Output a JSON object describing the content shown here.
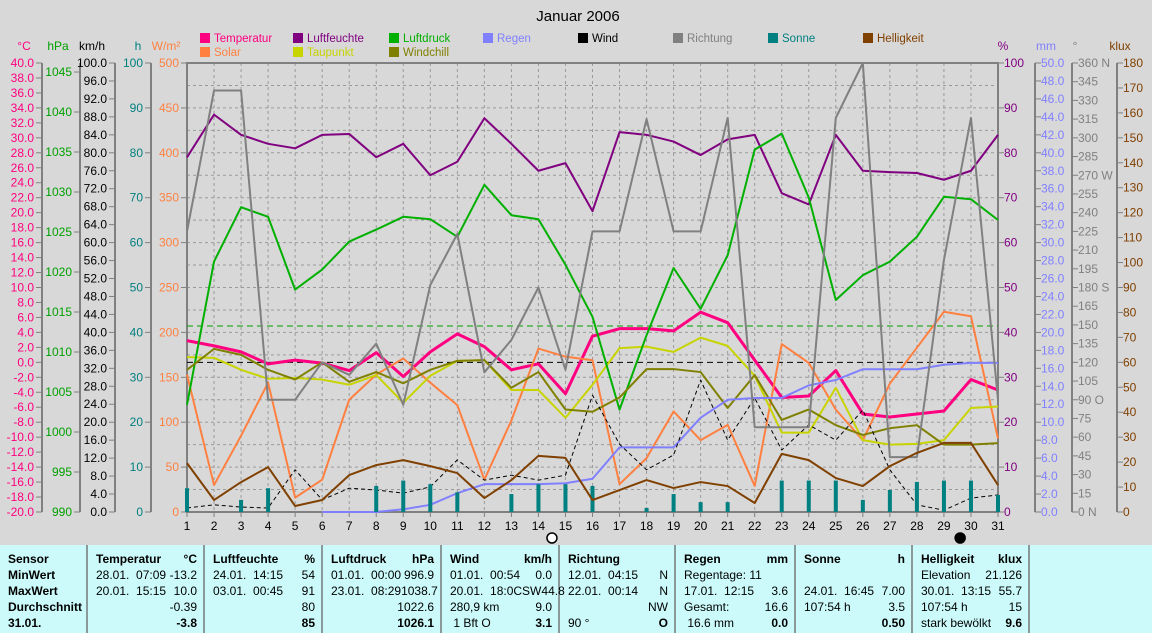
{
  "chart_data": {
    "type": "line",
    "title": "Januar 2006",
    "x": [
      1,
      2,
      3,
      4,
      5,
      6,
      7,
      8,
      9,
      10,
      11,
      12,
      13,
      14,
      15,
      16,
      17,
      18,
      19,
      20,
      21,
      22,
      23,
      24,
      25,
      26,
      27,
      28,
      29,
      30,
      31
    ],
    "xlim": [
      1,
      31
    ],
    "grid": true,
    "axes": {
      "temp": {
        "unit": "°C",
        "min": -20,
        "max": 40,
        "step": 2,
        "dec": 1,
        "color": "#ff0080",
        "side": "left"
      },
      "hpa": {
        "unit": "hPa",
        "min": 990,
        "max": 1046.125,
        "step": 5,
        "dec": 0,
        "color": "#00a000",
        "side": "left",
        "label_max": 1045
      },
      "kmh": {
        "unit": "km/h",
        "min": 0,
        "max": 100,
        "step": 4,
        "dec": 1,
        "color": "#000000",
        "side": "left"
      },
      "h": {
        "unit": "h",
        "min": 0,
        "max": 100,
        "step": 10,
        "dec": 0,
        "color": "#008080",
        "side": "left"
      },
      "wm2": {
        "unit": "W/m²",
        "min": 0,
        "max": 500,
        "step": 50,
        "dec": 0,
        "color": "#ff8040",
        "side": "left"
      },
      "pct": {
        "unit": "%",
        "min": 0,
        "max": 100,
        "step": 10,
        "dec": 0,
        "color": "#800080",
        "side": "right"
      },
      "mm": {
        "unit": "mm",
        "min": 0,
        "max": 50,
        "step": 2,
        "dec": 1,
        "color": "#8080ff",
        "side": "right"
      },
      "deg": {
        "unit": "°",
        "min": 0,
        "max": 360,
        "step": 15,
        "dec": 0,
        "color": "#808080",
        "side": "right",
        "suffix": {
          "360": " N",
          "270": " W",
          "180": " S",
          "90": " O",
          "0": " N"
        }
      },
      "klux": {
        "unit": "klux",
        "min": 0,
        "max": 180,
        "step": 10,
        "dec": 0,
        "color": "#804000",
        "side": "right"
      }
    },
    "reference_lines": [
      {
        "axis": "hpa",
        "value": 1013.25,
        "color": "#00a000"
      },
      {
        "axis": "temp",
        "value": 0,
        "color": "#000000"
      }
    ],
    "series": [
      {
        "name": "Temperatur",
        "axis": "temp",
        "color": "#ff0080",
        "width": 3,
        "values": [
          2.9,
          2.2,
          1.4,
          -0.2,
          0.3,
          -0.1,
          -1.1,
          1.3,
          -1.9,
          1.4,
          3.8,
          2.1,
          -1.0,
          -0.2,
          -4.2,
          3.5,
          4.5,
          4.5,
          4.2,
          6.7,
          5.3,
          0.3,
          -4.7,
          -4.5,
          -1.1,
          -6.9,
          -7.3,
          -6.9,
          -6.5,
          -2.3,
          -3.7
        ]
      },
      {
        "name": "Solar",
        "axis": "wm2",
        "color": "#ff8040",
        "width": 2,
        "values": [
          153,
          30,
          85,
          144,
          16,
          36,
          125,
          153,
          171,
          144,
          119,
          36,
          102,
          182,
          173,
          169,
          31,
          60,
          112,
          80,
          97,
          29,
          187,
          166,
          114,
          80,
          143,
          183,
          223,
          218,
          82
        ]
      },
      {
        "name": "Luftfeuchte",
        "axis": "pct",
        "color": "#800080",
        "width": 2,
        "values": [
          79,
          88.5,
          84,
          82,
          81,
          84,
          84.2,
          79,
          82,
          75,
          78,
          87.7,
          82,
          76,
          77.7,
          67,
          84.6,
          84,
          82.5,
          79.5,
          83,
          84,
          71,
          68.5,
          84,
          76,
          75.7,
          75.5,
          74,
          76,
          84
        ]
      },
      {
        "name": "Taupunkt",
        "axis": "temp",
        "color": "#c8d400",
        "width": 2,
        "values": [
          0.7,
          0.6,
          -1.0,
          -2.2,
          -2.1,
          -2.3,
          -3.0,
          -1.7,
          -5.4,
          -1.8,
          0.2,
          0.3,
          -3.7,
          -3.7,
          -7.4,
          -3.0,
          1.9,
          2.1,
          1.4,
          3.3,
          2.2,
          -1.8,
          -9.4,
          -9.4,
          -3.4,
          -10.4,
          -11.0,
          -10.9,
          -10.4,
          -6.1,
          -5.9
        ]
      },
      {
        "name": "Luftdruck",
        "axis": "hpa",
        "color": "#00b000",
        "width": 2,
        "values": [
          1003.4,
          1021.3,
          1028.1,
          1026.9,
          1017.8,
          1020.3,
          1023.8,
          1025.3,
          1026.9,
          1026.6,
          1024.4,
          1030.9,
          1027.1,
          1026.6,
          1020.9,
          1014.4,
          1002.8,
          1012.1,
          1020.5,
          1015.4,
          1022.1,
          1035.3,
          1037.3,
          1029.3,
          1016.5,
          1019.6,
          1021.3,
          1024.4,
          1029.4,
          1029.1,
          1026.5
        ]
      },
      {
        "name": "Windchill",
        "axis": "temp",
        "color": "#808000",
        "width": 2,
        "values": [
          -1.0,
          1.8,
          1.0,
          -1.0,
          -2.3,
          0,
          -2.6,
          -1.3,
          -2.8,
          -1.0,
          0.2,
          0.3,
          -3.4,
          -1.3,
          -6.3,
          -6.6,
          -4.7,
          -0.9,
          -0.9,
          -1.3,
          -6.1,
          -1.7,
          -7.7,
          -6.3,
          -8.4,
          -9.7,
          -8.8,
          -8.4,
          -11.0,
          -11.0,
          -10.8
        ]
      },
      {
        "name": "Regen",
        "axis": "mm",
        "color": "#8080ff",
        "width": 2,
        "start_day": 6,
        "values": [
          0,
          0,
          0,
          0,
          0,
          0,
          0,
          0,
          0.3,
          0.8,
          2.1,
          3.1,
          3.1,
          3.1,
          3.2,
          3.7,
          7.2,
          7.2,
          7.2,
          10.5,
          12.5,
          12.7,
          12.7,
          14.1,
          14.7,
          15.9,
          15.9,
          15.9,
          16.4,
          16.6,
          16.6
        ]
      },
      {
        "name": "Wind",
        "axis": "kmh",
        "color": "#000000",
        "width": 1,
        "dash": true,
        "values": [
          0.9,
          1.6,
          1.1,
          0.9,
          9.4,
          2.7,
          5.3,
          4.9,
          4.2,
          5.6,
          11.6,
          7.1,
          8.2,
          7.1,
          8.2,
          26.0,
          15.1,
          9.4,
          12.7,
          29.4,
          16.0,
          25.4,
          13.8,
          19.4,
          16.0,
          22.7,
          9.4,
          1.6,
          0.4,
          3.1,
          3.8
        ]
      },
      {
        "name": "Richtung",
        "axis": "deg",
        "color": "#808080",
        "width": 2,
        "values": [
          225,
          338,
          338,
          90,
          90,
          120,
          110,
          135,
          86,
          182,
          223,
          112,
          138,
          180,
          114,
          225,
          225,
          315,
          225,
          225,
          316,
          68,
          68,
          68,
          316,
          360,
          44,
          44,
          202,
          316,
          90
        ]
      },
      {
        "name": "Sonne",
        "axis": "h",
        "color": "#008080",
        "type": "bar",
        "values": [
          5.3,
          0,
          2.7,
          5.3,
          0,
          0,
          0,
          5.8,
          7.0,
          6.2,
          4.4,
          0,
          4.0,
          6.2,
          6.2,
          5.8,
          0,
          0.9,
          4.0,
          2.2,
          2.2,
          0,
          7.0,
          7.0,
          7.0,
          2.7,
          4.9,
          6.7,
          7.0,
          7.0,
          3.8
        ]
      },
      {
        "name": "Helligkeit",
        "axis": "klux",
        "color": "#804000",
        "width": 2,
        "values": [
          19.6,
          4.8,
          12,
          18,
          2.4,
          4.8,
          14.8,
          18.8,
          20.8,
          18.4,
          15.6,
          5.6,
          12.8,
          22.5,
          21.7,
          4.8,
          8.8,
          12.8,
          9.6,
          12,
          10.4,
          3.6,
          23.3,
          20.8,
          13.6,
          10.4,
          18.4,
          23.7,
          27.7,
          27.7,
          10.8
        ]
      }
    ],
    "legend": {
      "placement": "top",
      "rows": [
        [
          "Temperatur",
          "Luftfeuchte",
          "Luftdruck",
          "Regen",
          "Wind",
          "Richtung",
          "Sonne",
          "Helligkeit"
        ],
        [
          "Solar",
          "Taupunkt",
          "Windchill"
        ]
      ]
    },
    "moon_phases": [
      {
        "day": 14.5,
        "phase": "full"
      },
      {
        "day": 29.6,
        "phase": "new"
      }
    ]
  },
  "table": {
    "sensor": {
      "title": "Sensor",
      "rows": [
        "MinWert",
        "MaxWert",
        "Durchschnitt",
        "31.01."
      ]
    },
    "columns": [
      {
        "title": "Temperatur",
        "unit": "°C",
        "rows": [
          [
            "28.01.  07:09",
            "-13.2"
          ],
          [
            "20.01.  15:15",
            "10.0"
          ],
          [
            "",
            "-0.39"
          ],
          [
            "",
            "-3.8"
          ]
        ]
      },
      {
        "title": "Luftfeuchte",
        "unit": "%",
        "rows": [
          [
            "24.01.  14:15",
            "54"
          ],
          [
            "03.01.  00:45",
            "91"
          ],
          [
            "",
            "80"
          ],
          [
            "",
            "85"
          ]
        ]
      },
      {
        "title": "Luftdruck",
        "unit": "hPa",
        "rows": [
          [
            "01.01.  00:00",
            "996.9"
          ],
          [
            "23.01.  08:29",
            "1038.7"
          ],
          [
            "",
            "1022.6"
          ],
          [
            "",
            "1026.1"
          ]
        ]
      },
      {
        "title": "Wind",
        "unit": "km/h",
        "rows": [
          [
            "01.01.  00:54",
            "0.0"
          ],
          [
            "20.01.  18:0CSW",
            "44.8"
          ],
          [
            "280,9 km",
            "9.0"
          ],
          [
            " 1 Bft O",
            "3.1"
          ]
        ]
      },
      {
        "title": "Richtung",
        "unit": "",
        "rows": [
          [
            "12.01.  04:15",
            "N"
          ],
          [
            "22.01.  00:14",
            "N"
          ],
          [
            "",
            "NW"
          ],
          [
            "90 °",
            "O"
          ]
        ]
      },
      {
        "title": "Regen",
        "unit": "mm",
        "rows": [
          [
            "Regentage: 11",
            ""
          ],
          [
            "17.01.  12:15",
            "3.6"
          ],
          [
            "Gesamt:",
            "16.6"
          ],
          [
            " 16.6 mm",
            "0.0"
          ]
        ]
      },
      {
        "title": "Sonne",
        "unit": "h",
        "rows": [
          [
            "",
            ""
          ],
          [
            "24.01.  16:45",
            "7.00"
          ],
          [
            "107:54 h",
            "3.5"
          ],
          [
            "",
            "0.50"
          ]
        ]
      },
      {
        "title": "Helligkeit",
        "unit": "klux",
        "rows": [
          [
            "Elevation",
            "21.126"
          ],
          [
            "30.01.  13:15",
            "55.7"
          ],
          [
            "107:54 h",
            "15"
          ],
          [
            "stark bewölkt",
            "9.6"
          ]
        ]
      }
    ]
  }
}
